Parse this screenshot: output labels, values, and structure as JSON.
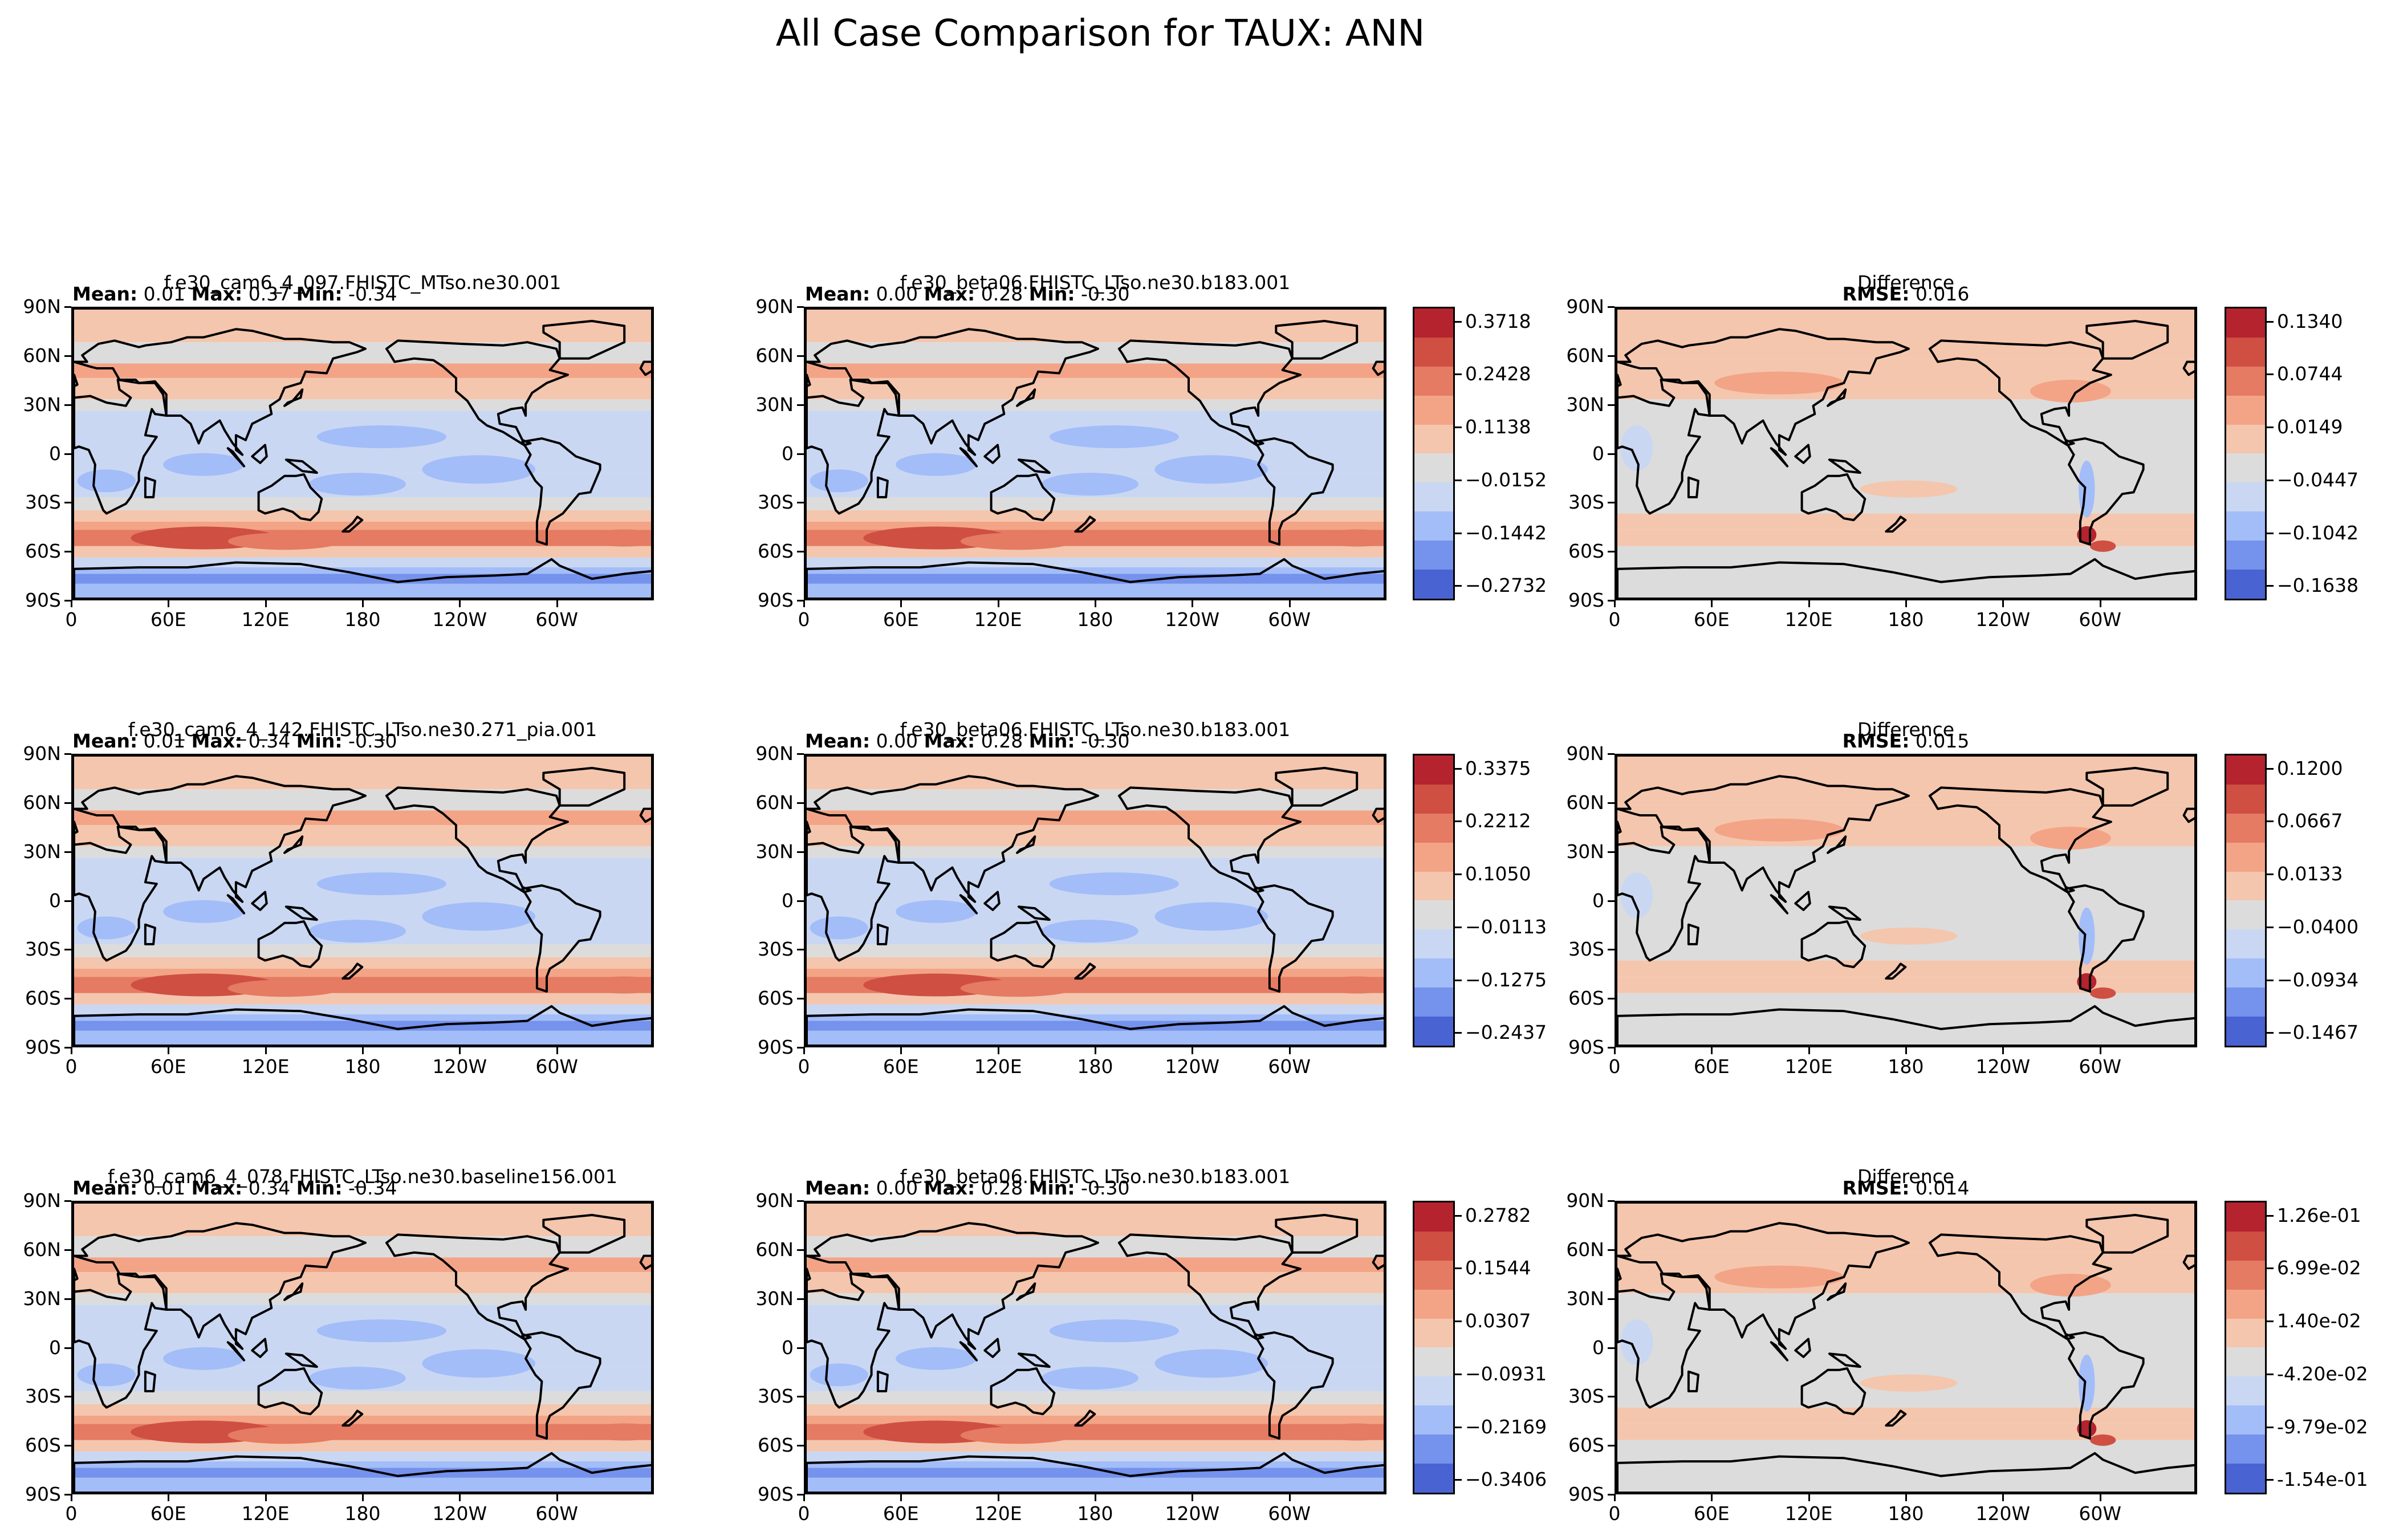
{
  "figure_title": "All Case Comparison for TAUX: ANN",
  "chart_data": {
    "type": "heatmap",
    "variable": "TAUX",
    "season": "ANN",
    "colormap": "coolwarm",
    "xticks": [
      "0",
      "60E",
      "120E",
      "180",
      "120W",
      "60W"
    ],
    "yticks": [
      "90N",
      "60N",
      "30N",
      "0",
      "30S",
      "60S",
      "90S"
    ],
    "rows": [
      {
        "test": {
          "title": "f.e30_cam6_4_097.FHISTC_MTso.ne30.001",
          "mean": "0.01",
          "max": "0.37",
          "min": "-0.34"
        },
        "control": {
          "title": "f.e30_beta06.FHISTC_LTso.ne30.b183.001",
          "mean": "0.00",
          "max": "0.28",
          "min": "-0.30"
        },
        "cbar_ticks": [
          "0.3718",
          "0.2428",
          "0.1138",
          "−0.0152",
          "−0.1442",
          "−0.2732"
        ],
        "diff": {
          "title": "Difference",
          "rmse": "0.016"
        },
        "diff_cbar_ticks": [
          "0.1340",
          "0.0744",
          "0.0149",
          "−0.0447",
          "−0.1042",
          "−0.1638"
        ]
      },
      {
        "test": {
          "title": "f.e30_cam6_4_142.FHISTC_LTso.ne30.271_pia.001",
          "mean": "0.01",
          "max": "0.34",
          "min": "-0.30"
        },
        "control": {
          "title": "f.e30_beta06.FHISTC_LTso.ne30.b183.001",
          "mean": "0.00",
          "max": "0.28",
          "min": "-0.30"
        },
        "cbar_ticks": [
          "0.3375",
          "0.2212",
          "0.1050",
          "−0.0113",
          "−0.1275",
          "−0.2437"
        ],
        "diff": {
          "title": "Difference",
          "rmse": "0.015"
        },
        "diff_cbar_ticks": [
          "0.1200",
          "0.0667",
          "0.0133",
          "−0.0400",
          "−0.0934",
          "−0.1467"
        ]
      },
      {
        "test": {
          "title": "f.e30_cam6_4_078.FHISTC_LTso.ne30.baseline156.001",
          "mean": "0.01",
          "max": "0.34",
          "min": "-0.34"
        },
        "control": {
          "title": "f.e30_beta06.FHISTC_LTso.ne30.b183.001",
          "mean": "0.00",
          "max": "0.28",
          "min": "-0.30"
        },
        "cbar_ticks": [
          "0.2782",
          "0.1544",
          "0.0307",
          "−0.0931",
          "−0.2169",
          "−0.3406"
        ],
        "diff": {
          "title": "Difference",
          "rmse": "0.014"
        },
        "diff_cbar_ticks": [
          "1.26e-01",
          "6.99e-02",
          "1.40e-02",
          "-4.20e-02",
          "-9.79e-02",
          "-1.54e-01"
        ]
      }
    ],
    "stat_labels": {
      "mean": "Mean:",
      "max": "Max:",
      "min": "Min:",
      "rmse": "RMSE:"
    },
    "colors": [
      "#4a63d3",
      "#7592ec",
      "#a3bdf9",
      "#c9d7f2",
      "#dcdcdc",
      "#f4c6ad",
      "#f3a486",
      "#e57b62",
      "#cf4f43",
      "#b5232f"
    ]
  }
}
